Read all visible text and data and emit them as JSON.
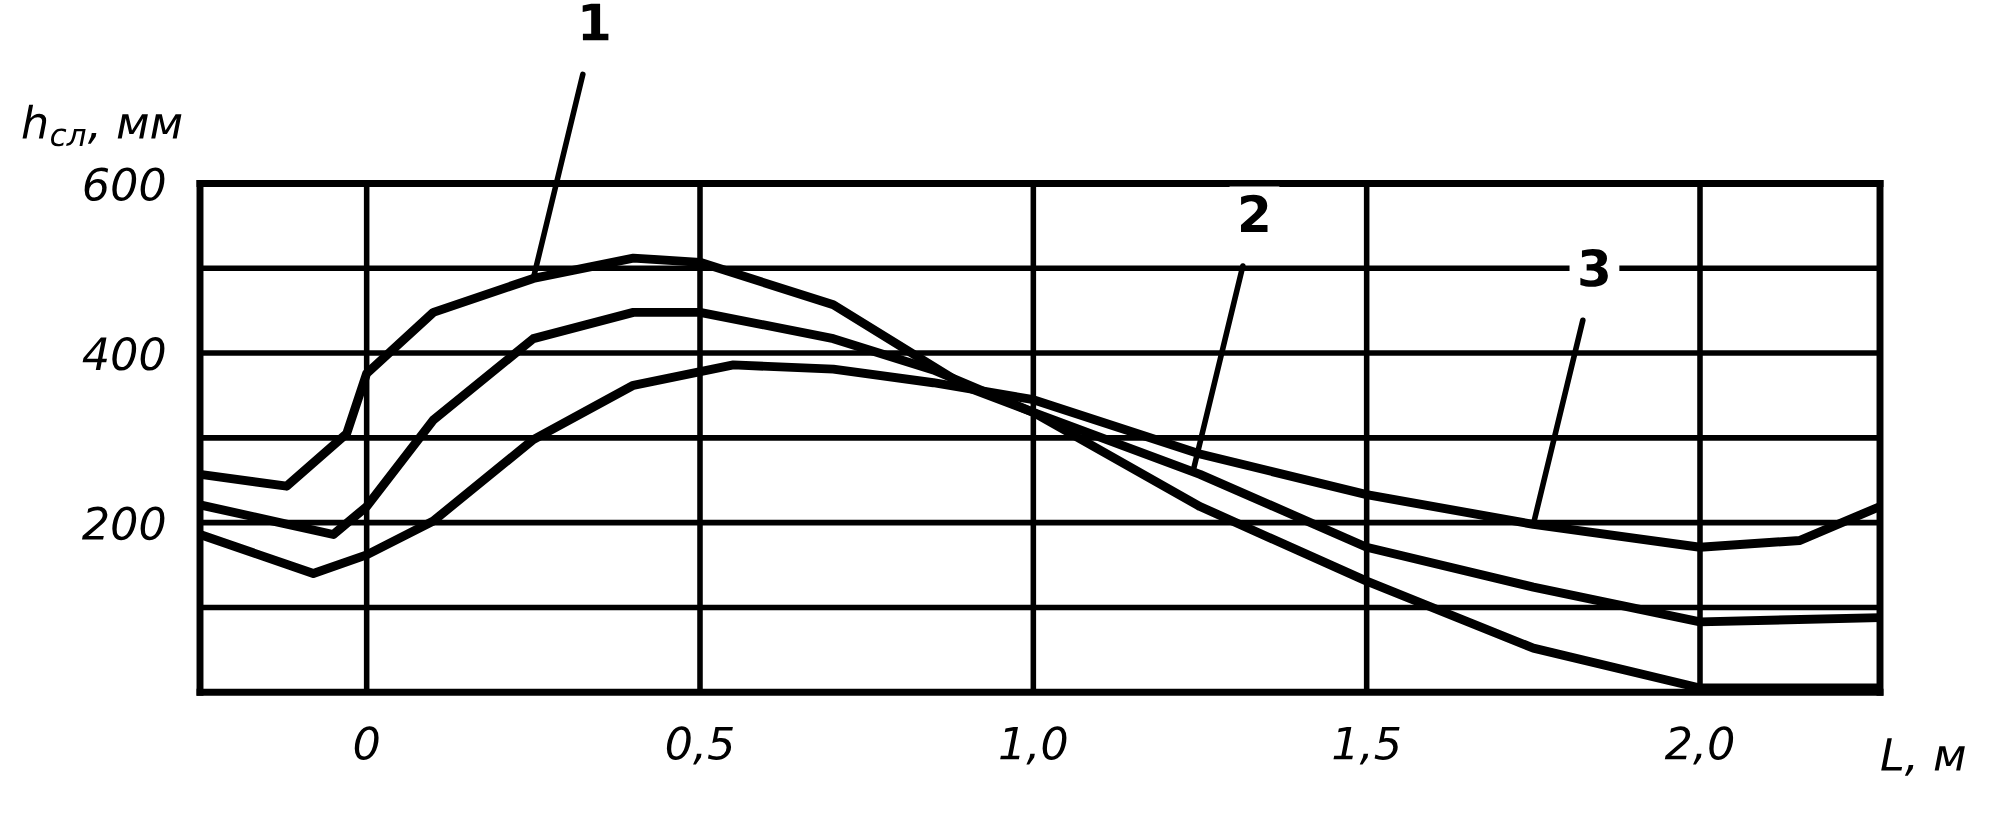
{
  "chart_data": {
    "type": "line",
    "xlabel": "L, м",
    "ylabel": "h$_{сл}$, мм",
    "xlim": [
      -0.25,
      2.27
    ],
    "ylim": [
      0,
      600
    ],
    "xticks": [
      {
        "value": 0,
        "label": "0"
      },
      {
        "value": 0.5,
        "label": "0,5"
      },
      {
        "value": 1.0,
        "label": "1,0"
      },
      {
        "value": 1.5,
        "label": "1,5"
      },
      {
        "value": 2.0,
        "label": "2,0"
      }
    ],
    "yticks": [
      {
        "value": 0,
        "label": null
      },
      {
        "value": 100,
        "label": null
      },
      200,
      {
        "value": 300,
        "label": null
      },
      400,
      {
        "value": 500,
        "label": null
      },
      600
    ],
    "grid": true,
    "marker": "none",
    "line_style": "solid",
    "series": [
      {
        "color": "#000000",
        "x": [
          -0.25,
          -0.12,
          -0.03,
          0,
          0.1,
          0.25,
          0.4,
          0.5,
          0.7,
          0.9,
          1.0,
          1.25,
          1.5,
          1.75,
          2.0,
          2.27
        ],
        "values": [
          257,
          243,
          305,
          376,
          448,
          488,
          512,
          507,
          457,
          360,
          330,
          219,
          131,
          52,
          5,
          5
        ]
      },
      {
        "color": "#000000",
        "x": [
          -0.25,
          -0.05,
          0,
          0.1,
          0.25,
          0.4,
          0.5,
          0.7,
          0.85,
          1.0,
          1.25,
          1.5,
          1.75,
          2.0,
          2.27
        ],
        "values": [
          221,
          186,
          219,
          321,
          417,
          448,
          448,
          417,
          380,
          330,
          257,
          171,
          124,
          83,
          88
        ]
      },
      {
        "color": "#000000",
        "x": [
          -0.25,
          -0.08,
          0,
          0.1,
          0.25,
          0.4,
          0.55,
          0.7,
          0.85,
          1.0,
          1.25,
          1.5,
          1.75,
          2.0,
          2.15,
          2.27
        ],
        "values": [
          186,
          140,
          162,
          202,
          298,
          362,
          386,
          381,
          365,
          345,
          281,
          233,
          198,
          171,
          179,
          219
        ]
      }
    ],
    "annotations": [
      {
        "text": "1",
        "x": 0.25,
        "y": 488
      },
      {
        "text": "2",
        "x": 1.24,
        "y": 262
      },
      {
        "text": "3",
        "x": 1.75,
        "y": 198
      }
    ]
  }
}
